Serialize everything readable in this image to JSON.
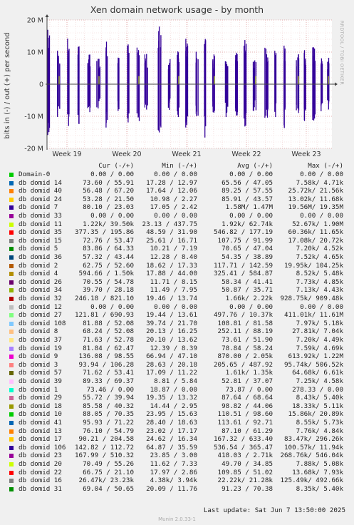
{
  "chart_data": {
    "type": "area",
    "title": "Xen domain network usage - by month",
    "ylabel": "bits in (-) / out (+) per second",
    "side_label": "RRDTOOL / TOBI OETIKER",
    "ylim": [
      -20000000,
      20000000
    ],
    "yticks": [
      {
        "value": 20000000,
        "label": "20 M"
      },
      {
        "value": 10000000,
        "label": "10 M"
      },
      {
        "value": 0,
        "label": "0"
      },
      {
        "value": -10000000,
        "label": "-10 M"
      },
      {
        "value": -20000000,
        "label": "-20 M"
      }
    ],
    "xticks": [
      "Week 19",
      "Week 20",
      "Week 21",
      "Week 22",
      "Week 23"
    ],
    "grid": true,
    "legend_header": [
      "Cur (-/+)",
      "Min (-/+)",
      "Avg (-/+)",
      "Max (-/+)"
    ],
    "series": [
      {
        "name": "Domain-0",
        "color": "#00cc00",
        "cur": "0.00 / 0.00",
        "min": "0.00 / 0.00",
        "avg": "0.00 / 0.00",
        "max": "0.00 / 0.00"
      },
      {
        "name": "db domid 14",
        "color": "#0066b3",
        "cur": "73.60 / 55.91",
        "min": "17.28 / 12.97",
        "avg": "65.56 / 47.05",
        "max": "7.58k/ 4.71k"
      },
      {
        "name": "db domid 40",
        "color": "#ff8000",
        "cur": "56.48 / 67.20",
        "min": "17.64 / 12.06",
        "avg": "89.25 / 57.55",
        "max": "25.72k/ 21.56k"
      },
      {
        "name": "db domid 24",
        "color": "#ffcc00",
        "cur": "53.28 / 21.50",
        "min": "10.98 / 2.27",
        "avg": "85.91 / 43.57",
        "max": "13.02k/ 11.68k"
      },
      {
        "name": "db domid 7",
        "color": "#330099",
        "cur": "80.10 / 23.03",
        "min": "17.05 / 2.42",
        "avg": "1.58M/ 1.47M",
        "max": "19.56M/ 19.35M"
      },
      {
        "name": "db domid 33",
        "color": "#990099",
        "cur": "0.00 / 0.00",
        "min": "0.00 / 0.00",
        "avg": "0.00 / 0.00",
        "max": "0.00 / 0.00"
      },
      {
        "name": "db domid 11",
        "color": "#ccff00",
        "cur": "1.22k/ 39.50k",
        "min": "23.13 / 437.75",
        "avg": "1.92k/ 62.74k",
        "max": "52.67k/ 1.90M"
      },
      {
        "name": "db domid 35",
        "color": "#ff0000",
        "cur": "377.35 / 195.86",
        "min": "48.59 / 31.90",
        "avg": "546.82 / 177.19",
        "max": "60.36k/ 11.65k"
      },
      {
        "name": "db domid 15",
        "color": "#808080",
        "cur": "72.76 / 53.47",
        "min": "25.61 / 16.71",
        "avg": "107.75 / 91.99",
        "max": "17.08k/ 20.72k"
      },
      {
        "name": "db domid 5",
        "color": "#008f00",
        "cur": "83.86 / 64.33",
        "min": "10.21 / 7.19",
        "avg": "70.65 / 47.04",
        "max": "7.20k/ 4.52k"
      },
      {
        "name": "db domid 36",
        "color": "#00487d",
        "cur": "57.32 / 43.44",
        "min": "12.28 / 8.40",
        "avg": "54.35 / 38.89",
        "max": "7.52k/ 4.65k"
      },
      {
        "name": "db domid 2",
        "color": "#b35a00",
        "cur": "62.75 / 52.60",
        "min": "18.62 / 17.33",
        "avg": "117.71 / 142.59",
        "max": "19.95k/ 104.25k"
      },
      {
        "name": "db domid 4",
        "color": "#b38f00",
        "cur": "594.66 / 1.50k",
        "min": "17.88 / 44.00",
        "avg": "325.41 / 584.87",
        "max": "8.52k/ 5.48k"
      },
      {
        "name": "db domid 26",
        "color": "#6b006b",
        "cur": "70.55 / 54.78",
        "min": "11.71 / 8.15",
        "avg": "58.34 / 41.41",
        "max": "7.73k/ 4.85k"
      },
      {
        "name": "db domid 34",
        "color": "#8fb300",
        "cur": "39.70 / 28.18",
        "min": "11.49 / 7.95",
        "avg": "50.87 / 35.71",
        "max": "7.13k/ 4.43k"
      },
      {
        "name": "db domid 32",
        "color": "#b30000",
        "cur": "246.18 / 821.10",
        "min": "19.46 / 13.74",
        "avg": "1.66k/ 2.22k",
        "max": "928.75k/ 909.48k"
      },
      {
        "name": "db domid 12",
        "color": "#bebebe",
        "cur": "0.00 / 0.00",
        "min": "0.00 / 0.00",
        "avg": "0.00 / 0.00",
        "max": "0.00 / 0.00"
      },
      {
        "name": "db domid 27",
        "color": "#80ff80",
        "cur": "121.81 / 690.93",
        "min": "19.44 / 13.61",
        "avg": "497.76 / 10.37k",
        "max": "411.01k/ 11.61M"
      },
      {
        "name": "db domid 108",
        "color": "#80c9ff",
        "cur": "81.88 / 52.08",
        "min": "39.74 / 21.70",
        "avg": "108.81 / 81.58",
        "max": "7.97k/ 5.18k"
      },
      {
        "name": "db domid 8",
        "color": "#ffc080",
        "cur": "68.24 / 52.08",
        "min": "20.13 / 16.25",
        "avg": "252.11 / 88.19",
        "max": "27.81k/ 7.04k"
      },
      {
        "name": "db domid 37",
        "color": "#ffe680",
        "cur": "71.63 / 52.78",
        "min": "20.10 / 13.62",
        "avg": "73.61 / 51.90",
        "max": "7.20k/ 4.49k"
      },
      {
        "name": "db domid 19",
        "color": "#aa80ff",
        "cur": "81.84 / 62.47",
        "min": "12.39 / 8.39",
        "avg": "78.84 / 58.24",
        "max": "7.59k/ 4.69k"
      },
      {
        "name": "db domid 9",
        "color": "#ee00cc",
        "cur": "136.08 / 98.55",
        "min": "66.94 / 47.10",
        "avg": "870.00 / 2.05k",
        "max": "613.92k/ 1.22M"
      },
      {
        "name": "db domid 3",
        "color": "#ff8080",
        "cur": "93.94 / 106.28",
        "min": "28.63 / 20.18",
        "avg": "205.65 / 487.92",
        "max": "95.74k/ 506.52k"
      },
      {
        "name": "db domid 57",
        "color": "#666600",
        "cur": "71.62 / 53.41",
        "min": "17.09 / 11.22",
        "avg": "1.61k/ 1.35k",
        "max": "64.68k/ 6.61k"
      },
      {
        "name": "db domid 39",
        "color": "#ffbfff",
        "cur": "89.33 / 69.37",
        "min": "8.81 / 5.84",
        "avg": "52.81 / 37.07",
        "max": "7.25k/ 4.58k"
      },
      {
        "name": "db domid 1",
        "color": "#00ffcc",
        "cur": "73.46 / 0.00",
        "min": "18.87 / 0.00",
        "avg": "73.87 / 0.00",
        "max": "278.33 / 0.00"
      },
      {
        "name": "db domid 29",
        "color": "#cc6699",
        "cur": "55.72 / 39.94",
        "min": "19.35 / 13.32",
        "avg": "87.64 / 68.64",
        "max": "8.43k/ 5.40k"
      },
      {
        "name": "db domid 18",
        "color": "#999900",
        "cur": "85.58 / 40.32",
        "min": "14.44 / 2.95",
        "avg": "98.82 / 44.06",
        "max": "18.33k/ 5.11k"
      },
      {
        "name": "db domid 10",
        "color": "#00cc00",
        "cur": "88.05 / 70.35",
        "min": "23.95 / 15.63",
        "avg": "110.51 / 98.60",
        "max": "15.86k/ 20.89k"
      },
      {
        "name": "db domid 41",
        "color": "#0066b3",
        "cur": "95.93 / 71.22",
        "min": "28.40 / 18.63",
        "avg": "113.61 / 92.71",
        "max": "8.55k/ 5.73k"
      },
      {
        "name": "db domid 13",
        "color": "#ff8000",
        "cur": "76.10 / 54.79",
        "min": "23.02 / 17.17",
        "avg": "87.10 / 61.29",
        "max": "7.76k/ 4.84k"
      },
      {
        "name": "db domid 17",
        "color": "#ffcc00",
        "cur": "90.21 / 204.58",
        "min": "24.62 / 16.34",
        "avg": "167.32 / 633.40",
        "max": "83.47k/ 296.26k"
      },
      {
        "name": "db domid 106",
        "color": "#330099",
        "cur": "142.82 / 112.72",
        "min": "64.87 / 35.59",
        "avg": "536.54 / 365.47",
        "max": "100.57k/ 11.94k"
      },
      {
        "name": "db domid 23",
        "color": "#990099",
        "cur": "167.99 / 510.32",
        "min": "23.85 / 3.00",
        "avg": "418.03 / 2.71k",
        "max": "268.76k/ 546.04k"
      },
      {
        "name": "db domid 20",
        "color": "#ccff00",
        "cur": "70.49 / 55.26",
        "min": "11.62 / 7.33",
        "avg": "49.70 / 34.85",
        "max": "7.88k/ 5.08k"
      },
      {
        "name": "db domid 22",
        "color": "#ff0000",
        "cur": "66.75 / 21.10",
        "min": "17.97 / 2.86",
        "avg": "109.85 / 51.02",
        "max": "13.68k/ 7.93k"
      },
      {
        "name": "db domid 16",
        "color": "#808080",
        "cur": "26.47k/ 23.23k",
        "min": "4.38k/ 3.94k",
        "avg": "22.22k/ 21.28k",
        "max": "125.49k/ 492.66k"
      },
      {
        "name": "db domid 31",
        "color": "#008f00",
        "cur": "69.04 / 50.65",
        "min": "20.09 / 11.76",
        "avg": "91.23 / 70.38",
        "max": "8.35k/ 5.40k"
      }
    ]
  },
  "footer": {
    "last_update": "Last update:  Sat Jun  7 13:50:00 2025",
    "munin_version": "Munin 2.0.33-1"
  }
}
